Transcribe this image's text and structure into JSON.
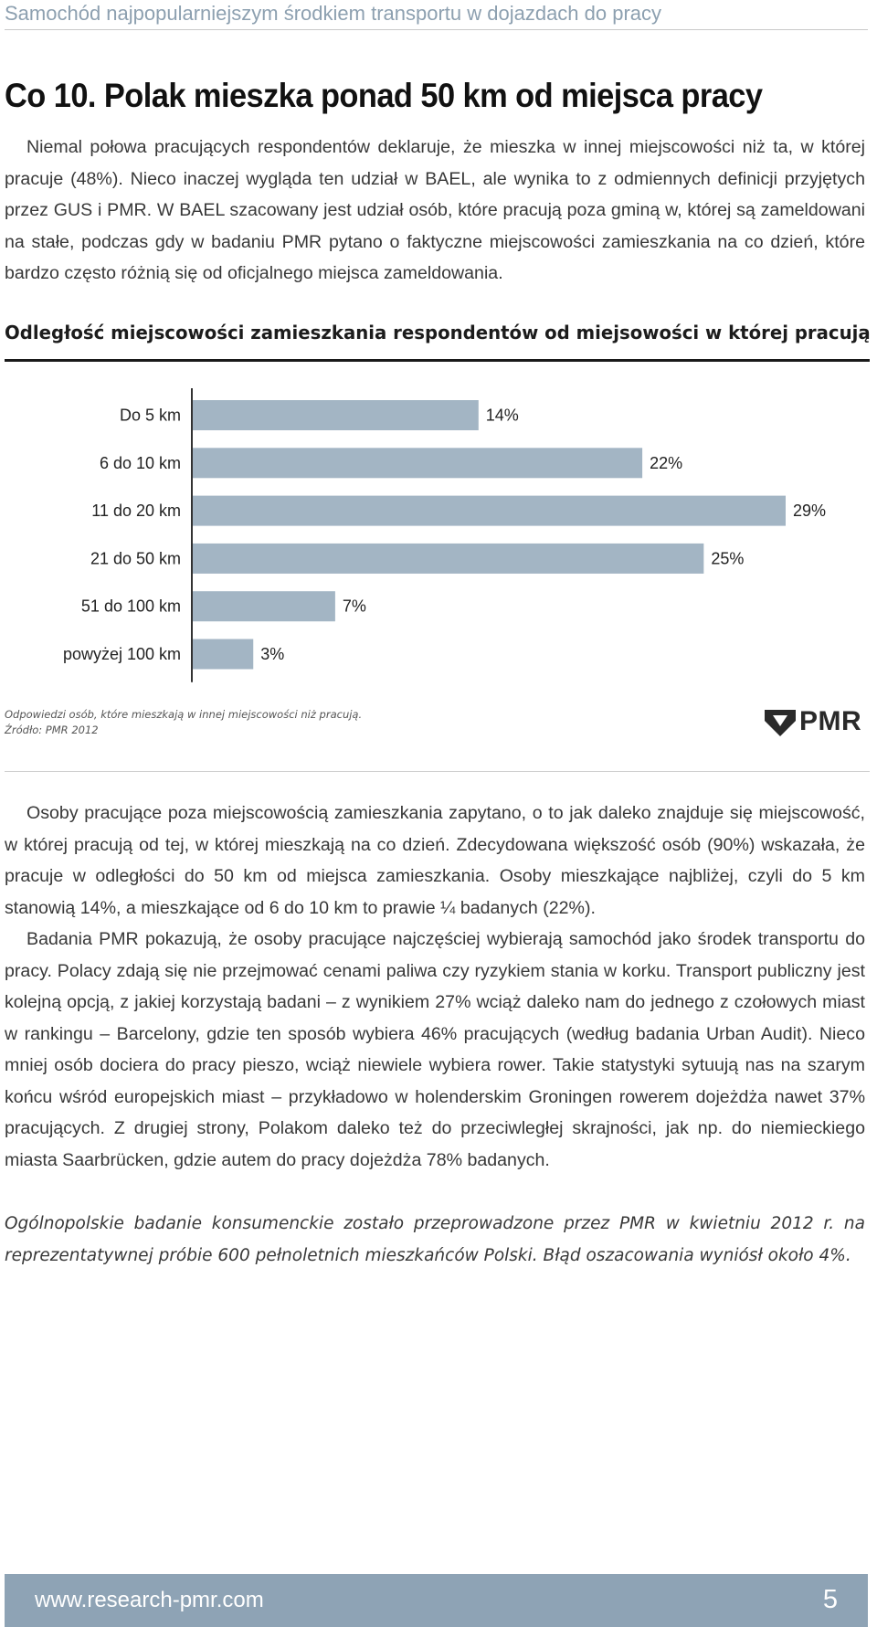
{
  "header": {
    "running_title": "Samochód najpopularniejszym środkiem transportu w dojazdach do pracy",
    "headline": "Co 10. Polak mieszka ponad 50 km od miejsca pracy"
  },
  "intro": "Niemal połowa pracujących respondentów deklaruje, że mieszka w innej miejscowości niż ta, w której pracuje (48%). Nieco inaczej wygląda ten udział w BAEL, ale wynika to z odmiennych definicji przyjętych przez GUS i PMR. W BAEL szacowany jest udział osób, które pracują poza gminą w, której są zameldowani na stałe, podczas gdy w badaniu PMR pytano o faktyczne miejscowości zamieszkania na co dzień, które bardzo często różnią się od oficjalnego miejsca zameldowania.",
  "chart_data": {
    "type": "bar",
    "orientation": "horizontal",
    "title": "Odległość miejscowości zamieszkania respondentów od miejsowości w której pracują",
    "categories": [
      "Do 5 km",
      "6 do 10 km",
      "11 do 20 km",
      "21 do 50 km",
      "51 do 100 km",
      "powyżej 100 km"
    ],
    "values": [
      14,
      22,
      29,
      25,
      7,
      3
    ],
    "value_labels": [
      "14%",
      "22%",
      "29%",
      "25%",
      "7%",
      "3%"
    ],
    "unit": "%",
    "xlim": [
      0,
      29
    ],
    "grid": false,
    "legend": false,
    "bar_color": "#a3b5c4"
  },
  "chart_note": {
    "footnote": "Odpowiedzi osób, które mieszkają w innej miejscowości niż pracują.",
    "source": "Źródło: PMR 2012"
  },
  "logo": {
    "text": "PMR",
    "icon": "pmr-logo-icon"
  },
  "body": [
    "Osoby pracujące poza miejscowością zamieszkania zapytano, o to jak daleko znajduje się miejscowość, w której pracują od tej, w której mieszkają na co dzień. Zdecydowana większość osób (90%) wskazała, że pracuje w odległości do 50 km od miejsca zamieszkania. Osoby mieszkające najbliżej, czyli do 5 km stanowią 14%, a mieszkające od 6 do 10 km to prawie ¼ badanych (22%).",
    "Badania PMR pokazują, że osoby pracujące najczęściej wybierają samochód jako środek transportu do pracy. Polacy zdają się nie przejmować cenami paliwa czy ryzykiem stania w korku. Transport publiczny jest kolejną opcją, z jakiej korzystają badani – z wynikiem 27% wciąż daleko nam do jednego z czołowych miast w rankingu – Barcelony, gdzie ten sposób wybiera 46% pracujących (według badania Urban Audit). Nieco mniej osób dociera do pracy pieszo, wciąż niewiele wybiera rower. Takie statystyki sytuują nas na szarym końcu wśród europejskich miast – przykładowo w holenderskim Groningen rowerem dojeżdża nawet 37% pracujących. Z drugiej strony, Polakom daleko też do przeciwległej skrajności, jak np. do niemieckiego miasta Saarbrücken, gdzie autem do pracy dojeżdża 78% badanych."
  ],
  "methodology_note": "Ogólnopolskie badanie konsumenckie zostało przeprowadzone przez PMR w kwietniu 2012 r. na reprezentatywnej próbie 600 pełnoletnich mieszkańców Polski. Błąd oszacowania wyniósł około 4%.",
  "footer": {
    "url": "www.research-pmr.com",
    "page_number": "5",
    "background": "#8ea3b5"
  }
}
